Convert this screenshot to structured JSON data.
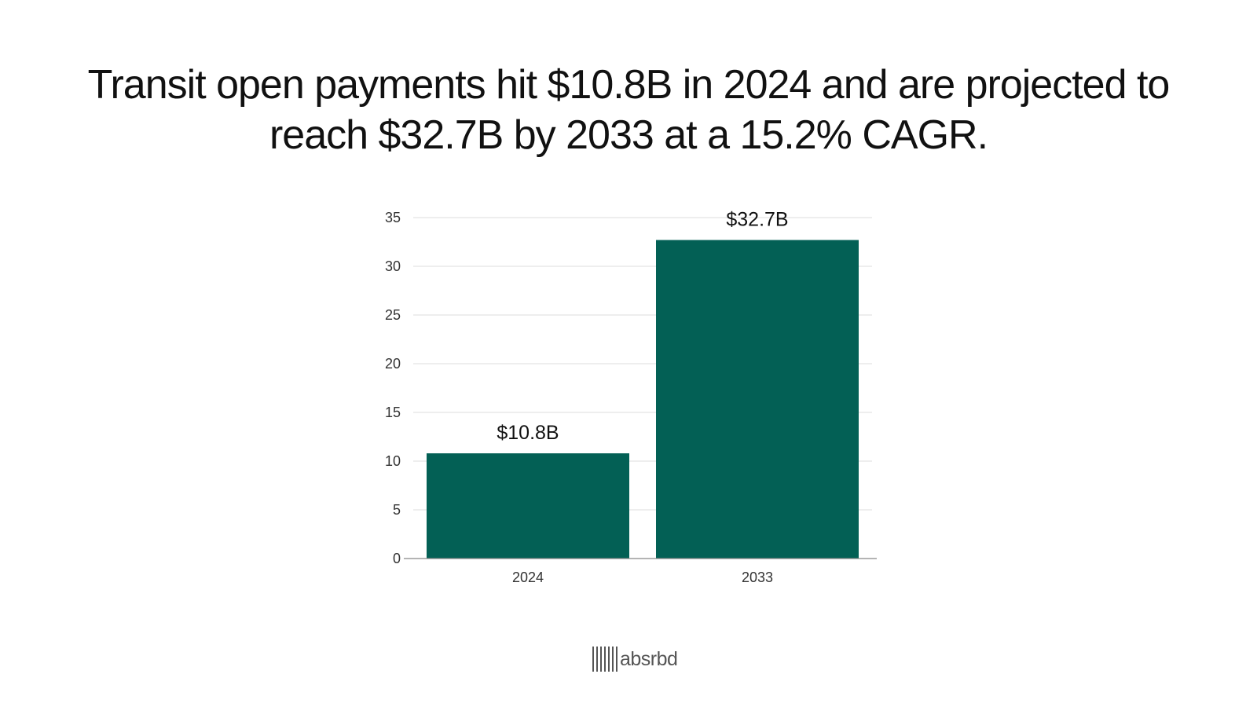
{
  "title": "Transit open payments hit $10.8B in 2024 and are projected to reach $32.7B by 2033 at a 15.2% CAGR.",
  "colors": {
    "bar": "#036055",
    "grid": "#dcdcdc",
    "axis": "#888888",
    "text": "#111111",
    "logo": "#555555"
  },
  "chart_data": {
    "type": "bar",
    "title": "",
    "xlabel": "",
    "ylabel": "",
    "categories": [
      "2024",
      "2033"
    ],
    "values": [
      10.8,
      32.7
    ],
    "data_labels": [
      "$10.8B",
      "$32.7B"
    ],
    "ylim": [
      0,
      35
    ],
    "yticks": [
      0,
      5,
      10,
      15,
      20,
      25,
      30,
      35
    ],
    "grid": true,
    "legend": "none"
  },
  "brand": {
    "logo_text": "absrbd",
    "logo_icon": "barcode-icon"
  }
}
